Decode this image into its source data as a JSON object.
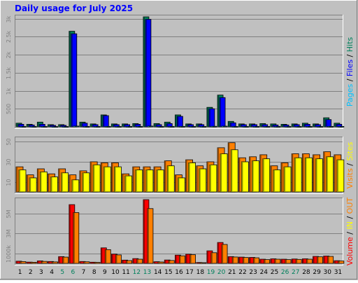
{
  "title": "Daily usage for July 2025",
  "colors": {
    "background": "#c0c0c0",
    "title": "#0000ff",
    "hits": "#00805c",
    "files": "#0000ff",
    "pages": "#00c0ff",
    "visits": "#ff8000",
    "sites": "#ffff00",
    "kbin": "#ff0000",
    "kbout": "#ff8000",
    "volume": "#ff0000",
    "weekend": "#00805c"
  },
  "chart_data": {
    "type": "bar",
    "days": [
      "1",
      "2",
      "3",
      "4",
      "5",
      "6",
      "7",
      "8",
      "9",
      "10",
      "11",
      "12",
      "13",
      "14",
      "15",
      "16",
      "17",
      "18",
      "19",
      "20",
      "21",
      "22",
      "23",
      "24",
      "25",
      "26",
      "27",
      "28",
      "29",
      "30",
      "31"
    ],
    "weekend_days": [
      "5",
      "6",
      "12",
      "13",
      "19",
      "20",
      "26",
      "27"
    ],
    "panels": [
      {
        "name": "hits-files-pages",
        "ytick_labels": [
          "500",
          "1k",
          "1.5k",
          "2k",
          "2.5k",
          "3k"
        ],
        "ytick_values": [
          500,
          1000,
          1500,
          2000,
          2500,
          3000
        ],
        "ylim": [
          0,
          3050
        ],
        "legend": [
          {
            "text": "Pages",
            "color": "#00c0ff"
          },
          {
            "text": " / ",
            "color": "#000000"
          },
          {
            "text": "Files",
            "color": "#0000ff"
          },
          {
            "text": " / ",
            "color": "#000000"
          },
          {
            "text": "Hits",
            "color": "#00805c"
          }
        ],
        "series": [
          {
            "name": "Hits",
            "values": [
              100,
              70,
              130,
              60,
              60,
              2650,
              130,
              80,
              330,
              80,
              80,
              90,
              3050,
              90,
              130,
              330,
              80,
              80,
              540,
              880,
              150,
              80,
              80,
              90,
              80,
              70,
              80,
              100,
              80,
              250,
              100
            ]
          },
          {
            "name": "Files",
            "values": [
              70,
              50,
              70,
              40,
              40,
              2580,
              100,
              60,
              310,
              60,
              60,
              70,
              2980,
              60,
              90,
              290,
              60,
              60,
              500,
              810,
              110,
              60,
              60,
              60,
              50,
              50,
              60,
              70,
              60,
              200,
              70
            ]
          },
          {
            "name": "Pages",
            "values": [
              10,
              10,
              10,
              8,
              8,
              20,
              10,
              10,
              12,
              10,
              10,
              10,
              20,
              10,
              10,
              12,
              10,
              10,
              14,
              18,
              10,
              10,
              10,
              10,
              10,
              10,
              10,
              10,
              10,
              12,
              10
            ]
          }
        ]
      },
      {
        "name": "visits-sites",
        "ytick_labels": [
          "10",
          "30",
          "50"
        ],
        "ytick_values": [
          10,
          30,
          50
        ],
        "ylim": [
          0,
          53
        ],
        "legend": [
          {
            "text": "Visits",
            "color": "#ff8000"
          },
          {
            "text": " / ",
            "color": "#000000"
          },
          {
            "text": "Sites",
            "color": "#ffff00"
          }
        ],
        "series": [
          {
            "name": "Visits",
            "values": [
              25,
              17,
              23,
              18,
              23,
              17,
              21,
              30,
              29,
              29,
              18,
              25,
              25,
              25,
              31,
              17,
              32,
              26,
              30,
              44,
              49,
              34,
              35,
              37,
              26,
              29,
              38,
              38,
              37,
              40,
              37
            ]
          },
          {
            "name": "Sites",
            "values": [
              22,
              14,
              20,
              15,
              19,
              12,
              19,
              27,
              25,
              25,
              16,
              22,
              22,
              22,
              26,
              14,
              29,
              23,
              27,
              38,
              42,
              30,
              31,
              33,
              22,
              25,
              34,
              34,
              33,
              35,
              32
            ]
          }
        ]
      },
      {
        "name": "volume",
        "ytick_labels": [
          "1000k",
          "3M",
          "5M"
        ],
        "ytick_values": [
          1000,
          3000,
          5000
        ],
        "ylim": [
          0,
          6400
        ],
        "legend": [
          {
            "text": "Volume",
            "color": "#ff0000"
          },
          {
            "text": " / ",
            "color": "#000000"
          },
          {
            "text": "IN",
            "color": "#ffff00"
          },
          {
            "text": " / ",
            "color": "#000000"
          },
          {
            "text": "OUT",
            "color": "#ff8000"
          }
        ],
        "series": [
          {
            "name": "Volume",
            "values": [
              220,
              130,
              250,
              190,
              680,
              5900,
              190,
              120,
              1560,
              930,
              330,
              480,
              6400,
              170,
              340,
              830,
              920,
              90,
              1260,
              2100,
              680,
              630,
              600,
              420,
              460,
              420,
              440,
              460,
              700,
              740,
              270
            ]
          },
          {
            "name": "IN",
            "values": [
              0,
              0,
              0,
              0,
              0,
              0,
              0,
              0,
              0,
              0,
              0,
              0,
              0,
              0,
              0,
              0,
              0,
              0,
              0,
              0,
              0,
              0,
              0,
              0,
              0,
              0,
              0,
              0,
              0,
              0,
              0
            ]
          },
          {
            "name": "OUT",
            "values": [
              180,
              110,
              200,
              150,
              630,
              5100,
              160,
              100,
              1380,
              850,
              280,
              420,
              5500,
              140,
              290,
              760,
              870,
              70,
              1070,
              1900,
              640,
              590,
              560,
              380,
              420,
              380,
              400,
              420,
              660,
              700,
              240
            ]
          }
        ]
      }
    ]
  }
}
